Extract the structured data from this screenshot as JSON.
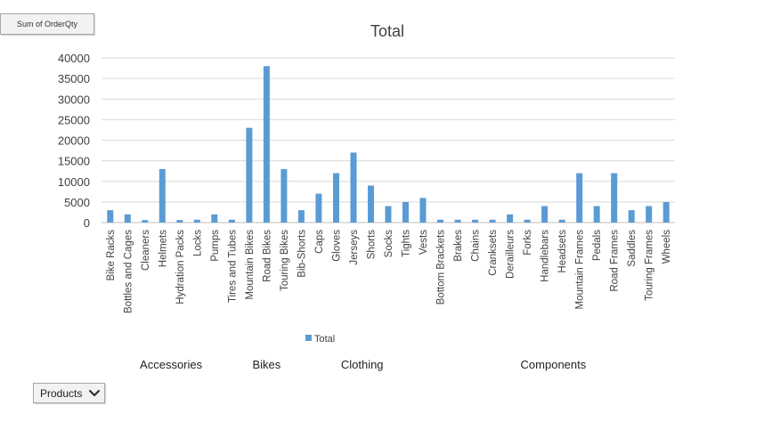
{
  "field_button": {
    "label": "Sum of OrderQty"
  },
  "filter_button": {
    "label": "Products",
    "icon": "chevron-down-icon"
  },
  "chart_data": {
    "type": "bar",
    "title": "Total",
    "xlabel": "",
    "ylabel": "",
    "ylim": [
      0,
      40000
    ],
    "y_ticks": [
      0,
      5000,
      10000,
      15000,
      20000,
      25000,
      30000,
      35000,
      40000
    ],
    "grid": true,
    "legend": "bottom",
    "bar_color": "#5b9bd5",
    "categories": [
      "Bike Racks",
      "Bottles and Cages",
      "Cleaners",
      "Helmets",
      "Hydration Packs",
      "Locks",
      "Pumps",
      "Tires and Tubes",
      "Mountain Bikes",
      "Road Bikes",
      "Touring Bikes",
      "Bib-Shorts",
      "Caps",
      "Gloves",
      "Jerseys",
      "Shorts",
      "Socks",
      "Tights",
      "Vests",
      "Bottom Brackets",
      "Brakes",
      "Chains",
      "Cranksets",
      "Derailleurs",
      "Forks",
      "Handlebars",
      "Headsets",
      "Mountain Frames",
      "Pedals",
      "Road Frames",
      "Saddles",
      "Touring Frames",
      "Wheels"
    ],
    "series": [
      {
        "name": "Total",
        "values": [
          3000,
          2000,
          600,
          13000,
          600,
          700,
          2000,
          700,
          23000,
          38000,
          13000,
          3000,
          7000,
          12000,
          17000,
          9000,
          4000,
          5000,
          6000,
          700,
          700,
          700,
          700,
          2000,
          700,
          4000,
          700,
          12000,
          4000,
          12000,
          3000,
          4000,
          5000
        ]
      }
    ],
    "groups": [
      {
        "name": "Accessories",
        "count": 8
      },
      {
        "name": "Bikes",
        "count": 3
      },
      {
        "name": "Clothing",
        "count": 8
      },
      {
        "name": "Components",
        "count": 14
      }
    ]
  }
}
